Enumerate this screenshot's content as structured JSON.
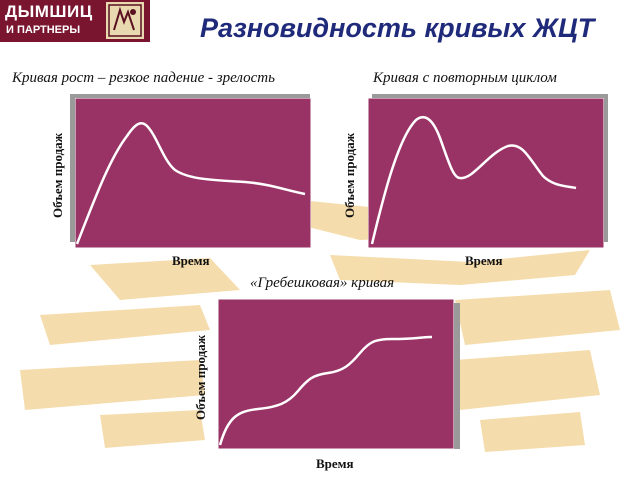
{
  "logo": {
    "line1": "ДЫМШИЦ",
    "line2": "И ПАРТНЕРЫ"
  },
  "title": "Разновидность кривых ЖЦТ",
  "colors": {
    "plot_bg": "#993366",
    "curve": "#ffffff",
    "title": "#1f2a7a",
    "logo_bg": "#7a1530",
    "watermark": "#f2cf8e"
  },
  "diagrams": [
    {
      "title": "Кривая рост – резкое падение - зрелость",
      "xlabel": "Время",
      "ylabel": "Объем продаж"
    },
    {
      "title": "Кривая с повторным циклом",
      "xlabel": "Время",
      "ylabel": "Объем продаж"
    },
    {
      "title": "«Гребешковая» кривая",
      "xlabel": "Время",
      "ylabel": "Объем продаж"
    }
  ]
}
